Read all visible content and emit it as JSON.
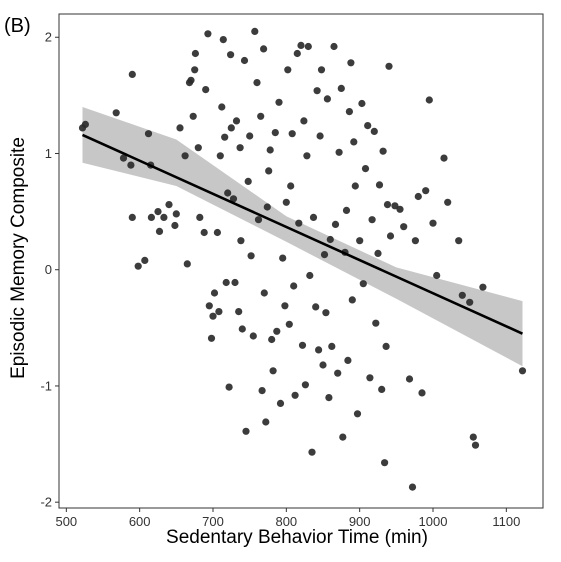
{
  "panel_label": "(B)",
  "chart_data": {
    "type": "scatter",
    "xlabel": "Sedentary Behavior Time (min)",
    "ylabel": "Episodic Memory Composite",
    "xlim": [
      490,
      1150
    ],
    "ylim": [
      -2.05,
      2.2
    ],
    "x_ticks": [
      500,
      600,
      700,
      800,
      900,
      1000,
      1100
    ],
    "y_ticks": [
      -2,
      -1,
      0,
      1,
      2
    ],
    "grid": false,
    "legend": "none",
    "colors": {
      "points": "#2b2b2b",
      "line": "#000000",
      "band": "#bdbdbd",
      "border": "#333333"
    },
    "regression": {
      "x": [
        522,
        1122
      ],
      "y": [
        1.16,
        -0.55
      ],
      "ci_x": [
        522,
        650,
        800,
        950,
        1122
      ],
      "ci_lower": [
        0.92,
        0.72,
        0.24,
        -0.25,
        -0.83
      ],
      "ci_upper": [
        1.4,
        1.12,
        0.46,
        0.02,
        -0.27
      ]
    },
    "points": [
      [
        522,
        1.22
      ],
      [
        526,
        1.25
      ],
      [
        568,
        1.35
      ],
      [
        578,
        0.96
      ],
      [
        588,
        0.9
      ],
      [
        590,
        1.68
      ],
      [
        590,
        0.45
      ],
      [
        598,
        0.03
      ],
      [
        607,
        0.08
      ],
      [
        612,
        1.17
      ],
      [
        615,
        0.9
      ],
      [
        616,
        0.45
      ],
      [
        625,
        0.5
      ],
      [
        627,
        0.33
      ],
      [
        633,
        0.45
      ],
      [
        640,
        0.56
      ],
      [
        648,
        0.38
      ],
      [
        650,
        0.48
      ],
      [
        655,
        1.22
      ],
      [
        662,
        0.98
      ],
      [
        665,
        0.05
      ],
      [
        668,
        1.61
      ],
      [
        670,
        1.63
      ],
      [
        673,
        1.32
      ],
      [
        675,
        1.72
      ],
      [
        676,
        1.86
      ],
      [
        680,
        1.05
      ],
      [
        682,
        0.45
      ],
      [
        688,
        0.32
      ],
      [
        690,
        1.55
      ],
      [
        693,
        2.03
      ],
      [
        695,
        -0.31
      ],
      [
        698,
        -0.59
      ],
      [
        700,
        -0.4
      ],
      [
        702,
        -0.2
      ],
      [
        706,
        0.32
      ],
      [
        708,
        -0.36
      ],
      [
        710,
        0.98
      ],
      [
        712,
        1.4
      ],
      [
        714,
        1.98
      ],
      [
        716,
        1.14
      ],
      [
        718,
        -0.11
      ],
      [
        720,
        0.66
      ],
      [
        722,
        -1.01
      ],
      [
        724,
        1.85
      ],
      [
        725,
        1.22
      ],
      [
        728,
        0.61
      ],
      [
        730,
        -0.11
      ],
      [
        732,
        1.28
      ],
      [
        735,
        -0.36
      ],
      [
        737,
        1.05
      ],
      [
        738,
        0.25
      ],
      [
        740,
        -0.51
      ],
      [
        743,
        1.8
      ],
      [
        745,
        -1.39
      ],
      [
        748,
        0.76
      ],
      [
        750,
        1.15
      ],
      [
        752,
        0.12
      ],
      [
        755,
        -0.57
      ],
      [
        757,
        2.05
      ],
      [
        760,
        1.61
      ],
      [
        762,
        0.43
      ],
      [
        765,
        1.32
      ],
      [
        767,
        -1.04
      ],
      [
        769,
        1.9
      ],
      [
        770,
        -0.2
      ],
      [
        772,
        -1.31
      ],
      [
        774,
        0.54
      ],
      [
        776,
        0.85
      ],
      [
        778,
        1.03
      ],
      [
        780,
        -0.6
      ],
      [
        782,
        -0.87
      ],
      [
        785,
        1.18
      ],
      [
        787,
        -0.53
      ],
      [
        790,
        1.44
      ],
      [
        792,
        -1.15
      ],
      [
        795,
        0.1
      ],
      [
        798,
        -0.31
      ],
      [
        800,
        0.58
      ],
      [
        802,
        1.72
      ],
      [
        804,
        -0.47
      ],
      [
        806,
        0.72
      ],
      [
        808,
        1.17
      ],
      [
        810,
        -0.14
      ],
      [
        812,
        -1.08
      ],
      [
        815,
        1.86
      ],
      [
        817,
        0.4
      ],
      [
        820,
        1.93
      ],
      [
        822,
        -0.65
      ],
      [
        824,
        1.28
      ],
      [
        826,
        -0.99
      ],
      [
        828,
        0.98
      ],
      [
        830,
        1.92
      ],
      [
        832,
        -0.05
      ],
      [
        835,
        -1.57
      ],
      [
        837,
        0.45
      ],
      [
        840,
        -0.32
      ],
      [
        842,
        1.54
      ],
      [
        844,
        -0.69
      ],
      [
        846,
        1.15
      ],
      [
        848,
        1.72
      ],
      [
        850,
        -0.82
      ],
      [
        852,
        0.13
      ],
      [
        854,
        -0.37
      ],
      [
        856,
        1.47
      ],
      [
        858,
        -1.1
      ],
      [
        860,
        0.26
      ],
      [
        862,
        -0.66
      ],
      [
        865,
        1.92
      ],
      [
        867,
        0.39
      ],
      [
        870,
        -0.89
      ],
      [
        872,
        1.01
      ],
      [
        875,
        1.56
      ],
      [
        877,
        -1.44
      ],
      [
        880,
        0.15
      ],
      [
        882,
        0.51
      ],
      [
        884,
        -0.78
      ],
      [
        886,
        1.36
      ],
      [
        888,
        1.78
      ],
      [
        890,
        -0.26
      ],
      [
        892,
        1.1
      ],
      [
        894,
        0.72
      ],
      [
        897,
        -1.24
      ],
      [
        900,
        0.25
      ],
      [
        903,
        1.43
      ],
      [
        905,
        -0.12
      ],
      [
        908,
        0.87
      ],
      [
        911,
        1.24
      ],
      [
        914,
        -0.93
      ],
      [
        917,
        0.43
      ],
      [
        920,
        1.19
      ],
      [
        922,
        -0.46
      ],
      [
        925,
        0.14
      ],
      [
        927,
        0.73
      ],
      [
        930,
        -1.03
      ],
      [
        932,
        1.02
      ],
      [
        934,
        -1.66
      ],
      [
        936,
        -0.66
      ],
      [
        938,
        0.56
      ],
      [
        940,
        1.75
      ],
      [
        942,
        0.29
      ],
      [
        948,
        0.55
      ],
      [
        955,
        0.52
      ],
      [
        960,
        0.37
      ],
      [
        968,
        -0.94
      ],
      [
        972,
        -1.87
      ],
      [
        976,
        0.25
      ],
      [
        980,
        0.63
      ],
      [
        985,
        -1.06
      ],
      [
        990,
        0.68
      ],
      [
        995,
        1.46
      ],
      [
        1000,
        0.4
      ],
      [
        1005,
        -0.05
      ],
      [
        1015,
        0.96
      ],
      [
        1020,
        0.58
      ],
      [
        1035,
        0.25
      ],
      [
        1040,
        -0.22
      ],
      [
        1050,
        -0.28
      ],
      [
        1055,
        -1.44
      ],
      [
        1058,
        -1.51
      ],
      [
        1068,
        -0.15
      ],
      [
        1122,
        -0.87
      ]
    ]
  }
}
